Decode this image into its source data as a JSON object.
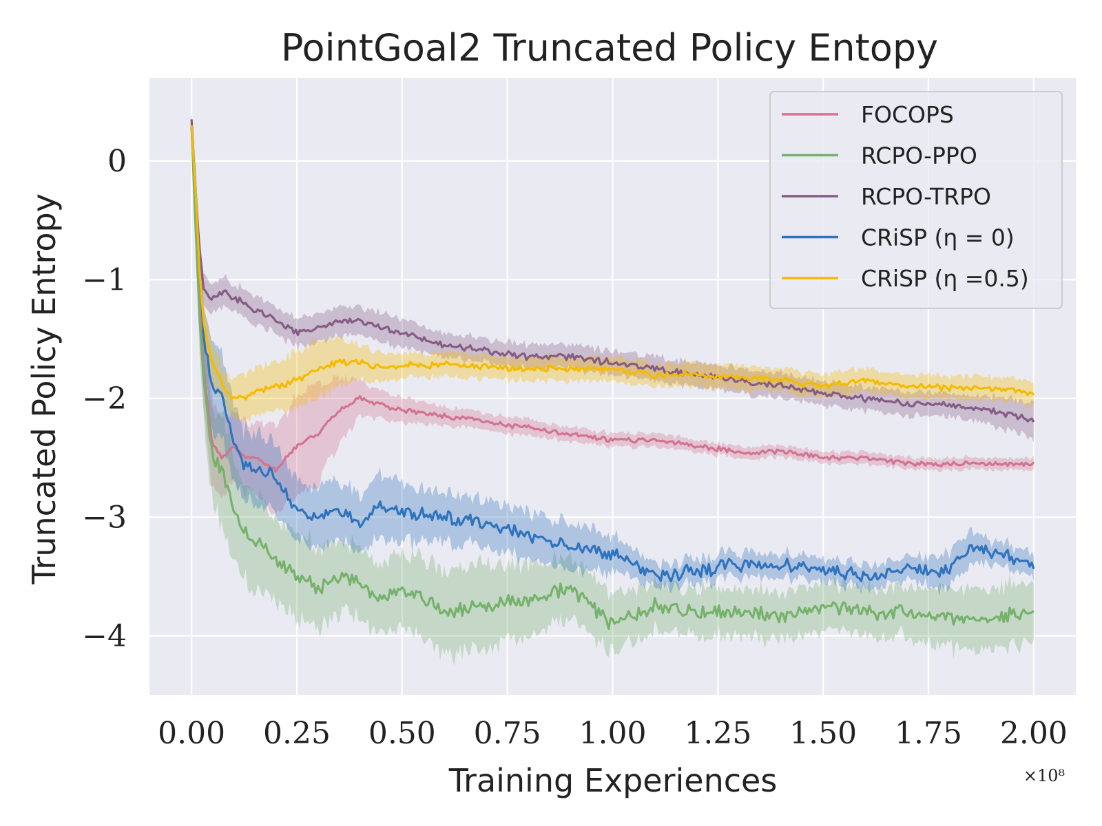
{
  "chart_data": {
    "type": "line",
    "title": "PointGoal2 Truncated Policy Entopy",
    "xlabel": "Training Experiences",
    "ylabel": "Truncated Policy Entropy",
    "x_multiplier": "×10⁸",
    "xlim": [
      -0.1,
      2.1
    ],
    "ylim": [
      -4.5,
      0.7
    ],
    "xticks": [
      0.0,
      0.25,
      0.5,
      0.75,
      1.0,
      1.25,
      1.5,
      1.75,
      2.0
    ],
    "xtick_labels": [
      "0.00",
      "0.25",
      "0.50",
      "0.75",
      "1.00",
      "1.25",
      "1.50",
      "1.75",
      "2.00"
    ],
    "yticks": [
      0,
      -1,
      -2,
      -3,
      -4
    ],
    "ytick_labels": [
      "0",
      "−1",
      "−2",
      "−3",
      "−4"
    ],
    "grid": true,
    "legend_position": "top-right",
    "x": [
      0.0,
      0.01,
      0.02,
      0.03,
      0.05,
      0.075,
      0.1,
      0.125,
      0.15,
      0.2,
      0.25,
      0.3,
      0.35,
      0.4,
      0.45,
      0.5,
      0.6,
      0.7,
      0.8,
      0.9,
      1.0,
      1.1,
      1.2,
      1.3,
      1.4,
      1.5,
      1.6,
      1.7,
      1.8,
      1.85,
      1.9,
      2.0
    ],
    "series": [
      {
        "name": "FOCOPS",
        "color": "#d27390",
        "values": [
          0.3,
          -0.5,
          -1.3,
          -1.8,
          -2.4,
          -2.5,
          -2.4,
          -2.5,
          -2.5,
          -2.6,
          -2.4,
          -2.3,
          -2.1,
          -2.0,
          -2.05,
          -2.1,
          -2.15,
          -2.2,
          -2.25,
          -2.3,
          -2.35,
          -2.35,
          -2.4,
          -2.45,
          -2.45,
          -2.5,
          -2.5,
          -2.55,
          -2.55,
          -2.55,
          -2.55,
          -2.55
        ],
        "spread": [
          0.1,
          0.2,
          0.3,
          0.35,
          0.4,
          0.35,
          0.3,
          0.3,
          0.3,
          0.35,
          0.4,
          0.4,
          0.3,
          0.15,
          0.12,
          0.1,
          0.08,
          0.07,
          0.07,
          0.06,
          0.06,
          0.06,
          0.05,
          0.05,
          0.05,
          0.05,
          0.05,
          0.05,
          0.05,
          0.05,
          0.05,
          0.05
        ]
      },
      {
        "name": "RCPO-PPO",
        "color": "#76b26c",
        "values": [
          0.3,
          -0.6,
          -1.4,
          -1.9,
          -2.5,
          -2.6,
          -2.95,
          -3.1,
          -3.2,
          -3.35,
          -3.5,
          -3.6,
          -3.5,
          -3.55,
          -3.7,
          -3.6,
          -3.8,
          -3.75,
          -3.7,
          -3.6,
          -3.9,
          -3.75,
          -3.8,
          -3.8,
          -3.85,
          -3.75,
          -3.8,
          -3.8,
          -3.85,
          -3.85,
          -3.85,
          -3.8
        ],
        "spread": [
          0.1,
          0.2,
          0.3,
          0.35,
          0.4,
          0.45,
          0.45,
          0.4,
          0.4,
          0.35,
          0.35,
          0.35,
          0.3,
          0.3,
          0.3,
          0.3,
          0.35,
          0.35,
          0.3,
          0.25,
          0.25,
          0.2,
          0.2,
          0.2,
          0.2,
          0.2,
          0.2,
          0.2,
          0.25,
          0.25,
          0.25,
          0.25
        ]
      },
      {
        "name": "RCPO-TRPO",
        "color": "#855c85",
        "values": [
          0.35,
          -0.3,
          -0.8,
          -1.1,
          -1.15,
          -1.1,
          -1.15,
          -1.2,
          -1.25,
          -1.35,
          -1.45,
          -1.4,
          -1.35,
          -1.35,
          -1.4,
          -1.45,
          -1.55,
          -1.6,
          -1.65,
          -1.65,
          -1.7,
          -1.75,
          -1.8,
          -1.85,
          -1.9,
          -1.95,
          -2.0,
          -2.05,
          -2.05,
          -2.08,
          -2.1,
          -2.18
        ],
        "spread": [
          0.05,
          0.1,
          0.12,
          0.12,
          0.12,
          0.12,
          0.12,
          0.12,
          0.12,
          0.12,
          0.12,
          0.12,
          0.12,
          0.12,
          0.12,
          0.12,
          0.1,
          0.1,
          0.1,
          0.1,
          0.1,
          0.1,
          0.1,
          0.1,
          0.1,
          0.1,
          0.1,
          0.1,
          0.1,
          0.1,
          0.12,
          0.15
        ]
      },
      {
        "name": "CRiSP (η = 0)",
        "color": "#2f73bd",
        "values": [
          0.3,
          -0.3,
          -1.0,
          -1.5,
          -1.9,
          -2.0,
          -2.35,
          -2.55,
          -2.6,
          -2.65,
          -2.95,
          -3.0,
          -2.95,
          -3.05,
          -2.9,
          -2.95,
          -3.0,
          -3.05,
          -3.15,
          -3.25,
          -3.3,
          -3.5,
          -3.45,
          -3.4,
          -3.4,
          -3.45,
          -3.5,
          -3.45,
          -3.45,
          -3.25,
          -3.3,
          -3.38
        ],
        "spread": [
          0.1,
          0.25,
          0.3,
          0.3,
          0.35,
          0.35,
          0.35,
          0.3,
          0.3,
          0.3,
          0.25,
          0.25,
          0.25,
          0.25,
          0.25,
          0.25,
          0.2,
          0.2,
          0.2,
          0.2,
          0.15,
          0.1,
          0.1,
          0.1,
          0.1,
          0.1,
          0.1,
          0.1,
          0.15,
          0.15,
          0.1,
          0.1
        ]
      },
      {
        "name": "CRiSP (η =0.5)",
        "color": "#f5bb00",
        "values": [
          0.3,
          -0.3,
          -1.0,
          -1.4,
          -1.7,
          -1.9,
          -2.0,
          -2.0,
          -1.95,
          -1.9,
          -1.85,
          -1.75,
          -1.7,
          -1.7,
          -1.75,
          -1.72,
          -1.72,
          -1.73,
          -1.75,
          -1.75,
          -1.75,
          -1.8,
          -1.8,
          -1.82,
          -1.85,
          -1.9,
          -1.85,
          -1.9,
          -1.92,
          -1.92,
          -1.92,
          -1.95
        ],
        "spread": [
          0.05,
          0.1,
          0.15,
          0.15,
          0.15,
          0.15,
          0.15,
          0.2,
          0.2,
          0.2,
          0.25,
          0.25,
          0.2,
          0.15,
          0.12,
          0.1,
          0.1,
          0.1,
          0.1,
          0.1,
          0.1,
          0.1,
          0.1,
          0.1,
          0.1,
          0.1,
          0.1,
          0.1,
          0.1,
          0.1,
          0.1,
          0.1
        ]
      }
    ]
  }
}
